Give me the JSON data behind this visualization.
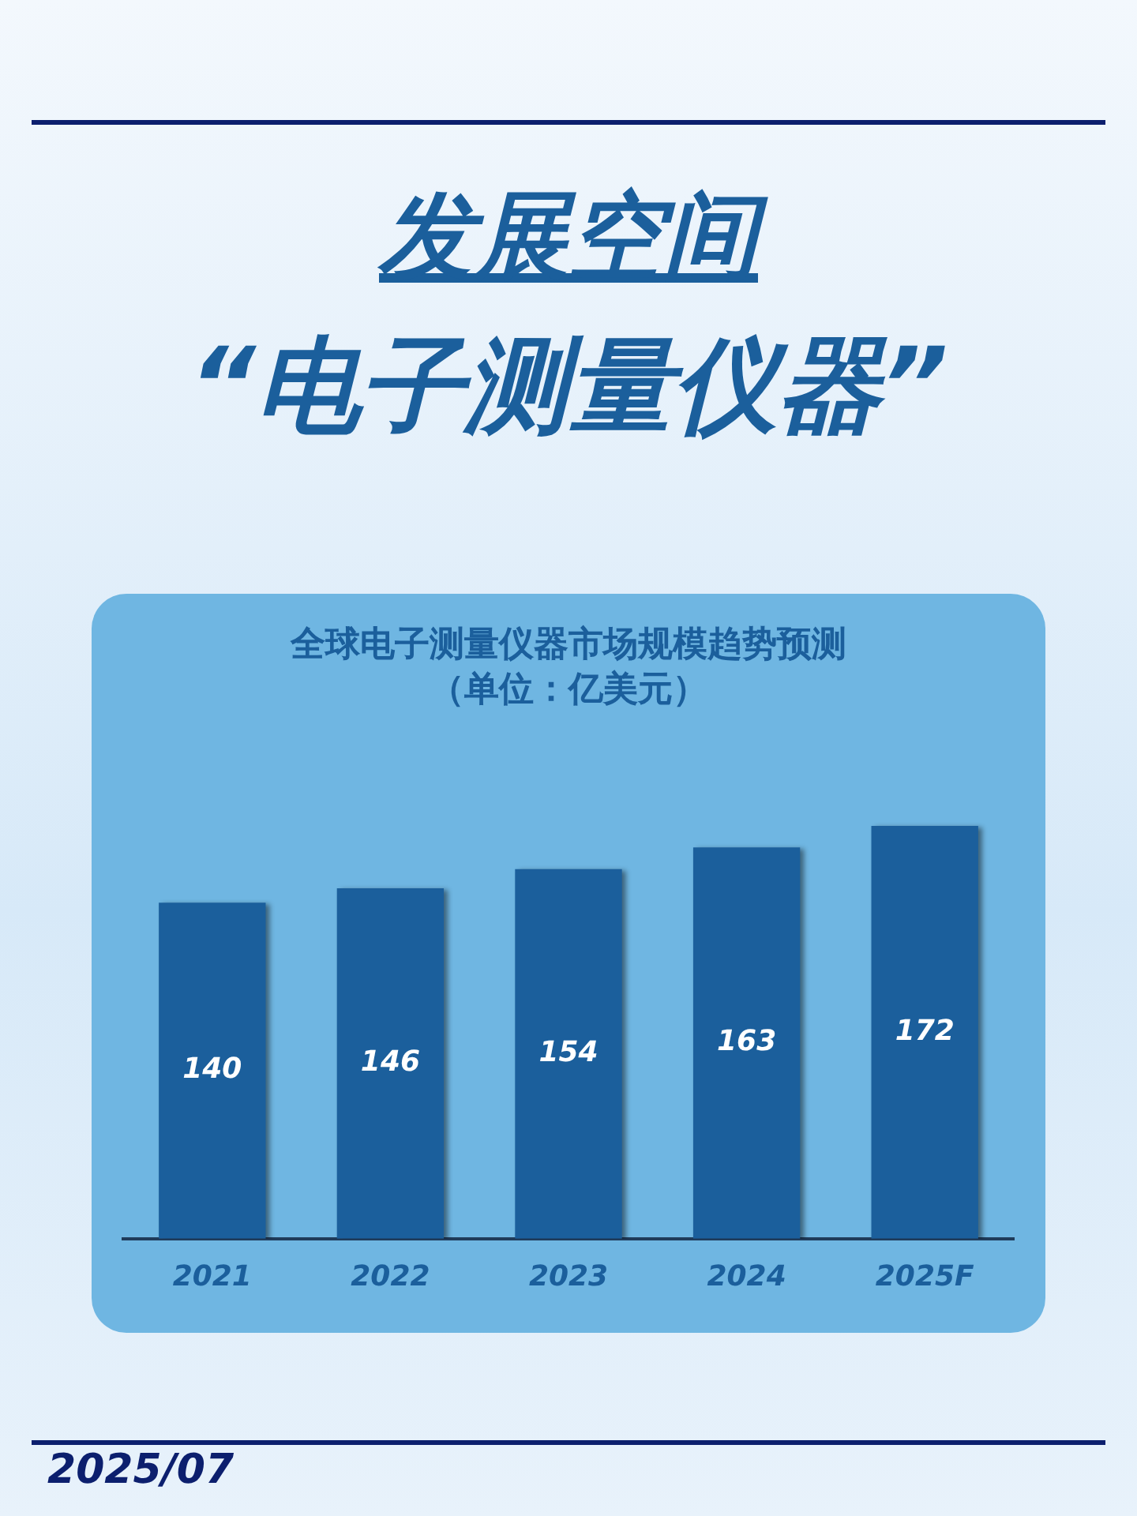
{
  "chart_data": {
    "type": "bar",
    "title": "全球电子测量仪器市场规模趋势预测",
    "subtitle": "（单位：亿美元）",
    "categories": [
      "2021",
      "2022",
      "2023",
      "2024",
      "2025F"
    ],
    "values": [
      140,
      146,
      154,
      163,
      172
    ],
    "color": "#1b5f9c",
    "data_labels": true,
    "annotations": [
      "发展空间",
      "“电子测量仪器”",
      "2025/07"
    ]
  }
}
